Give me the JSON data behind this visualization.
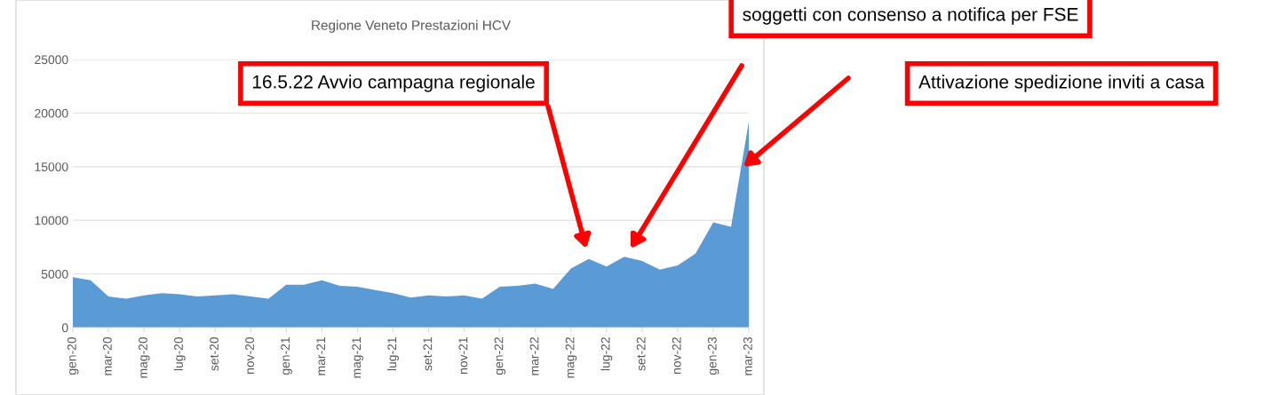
{
  "chart_data": {
    "type": "area",
    "title": "Regione Veneto Prestazioni HCV",
    "categories": [
      "gen-20",
      null,
      "mar-20",
      null,
      "mag-20",
      null,
      "lug-20",
      null,
      "set-20",
      null,
      "nov-20",
      null,
      "gen-21",
      null,
      "mar-21",
      null,
      "mag-21",
      null,
      "lug-21",
      null,
      "set-21",
      null,
      "nov-21",
      null,
      "gen-22",
      null,
      "mar-22",
      null,
      "mag-22",
      null,
      "lug-22",
      null,
      "set-22",
      null,
      "nov-22",
      null,
      "gen-23",
      null,
      "mar-23"
    ],
    "series": [
      {
        "color": "#5b9bd5",
        "values": [
          4700,
          4400,
          2900,
          2700,
          3000,
          3200,
          3100,
          2900,
          3000,
          3100,
          2900,
          2700,
          4000,
          4000,
          4400,
          3900,
          3800,
          3500,
          3200,
          2800,
          3000,
          2900,
          3000,
          2700,
          3800,
          3900,
          4100,
          3600,
          5500,
          6400,
          5700,
          6600,
          6200,
          5400,
          5800,
          6900,
          9800,
          9400,
          19200
        ]
      }
    ],
    "ylim": [
      0,
      25000
    ],
    "yticks": [
      0,
      5000,
      10000,
      15000,
      20000,
      25000
    ],
    "grid": "y",
    "legend": false,
    "annotations": [
      "16.5.22 Avvio campagna regionale",
      "soggetti con consenso a notifica per FSE",
      "Attivazione spedizione inviti a casa"
    ]
  }
}
